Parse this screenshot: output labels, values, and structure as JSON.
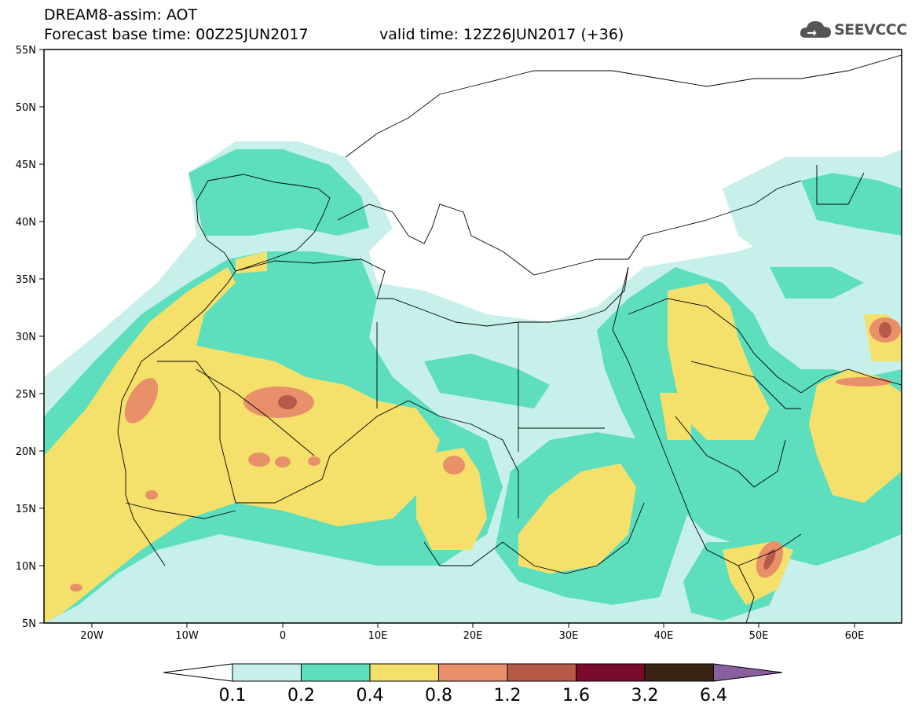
{
  "header": {
    "line1": "DREAM8-assim: AOT",
    "line2": "Forecast base time: 00Z25JUN2017",
    "valid": "valid time: 12Z26JUN2017 (+36)"
  },
  "logo": {
    "text": "SEEVCCC",
    "icon": "cloud-icon"
  },
  "map": {
    "lat_labels": [
      "55N",
      "50N",
      "45N",
      "40N",
      "35N",
      "30N",
      "25N",
      "20N",
      "15N",
      "10N",
      "5N"
    ],
    "lon_labels": [
      "20W",
      "10W",
      "0",
      "10E",
      "20E",
      "30E",
      "40E",
      "50E",
      "60E"
    ]
  },
  "colorbar": {
    "labels": [
      "0.1",
      "0.2",
      "0.4",
      "0.8",
      "1.2",
      "1.6",
      "3.2",
      "6.4"
    ],
    "colors": [
      "#ffffff",
      "#c8f0ea",
      "#5ddfbe",
      "#f5e06b",
      "#e8906a",
      "#b65a48",
      "#7a0a2a",
      "#3c2414",
      "#8a5fa0"
    ]
  },
  "colors": {
    "c01": "#c8f0ea",
    "c02": "#5ddfbe",
    "c04": "#f5e06b",
    "c08": "#e8906a",
    "c12": "#b65a48"
  }
}
